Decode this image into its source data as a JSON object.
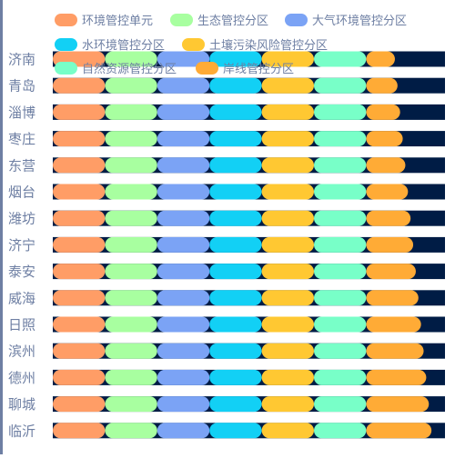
{
  "chart_data": {
    "type": "bar",
    "orientation": "horizontal",
    "stacked": true,
    "categories": [
      "济南",
      "青岛",
      "淄博",
      "枣庄",
      "东营",
      "烟台",
      "潍坊",
      "济宁",
      "泰安",
      "威海",
      "日照",
      "滨州",
      "德州",
      "聊城",
      "临沂"
    ],
    "series": [
      {
        "name": "环境管控单元",
        "color": "#ff9d66",
        "values": [
          20,
          20,
          20,
          20,
          20,
          20,
          20,
          20,
          20,
          20,
          20,
          20,
          20,
          20,
          20
        ]
      },
      {
        "name": "生态管控分区",
        "color": "#a8ffa0",
        "values": [
          20,
          20,
          20,
          20,
          20,
          20,
          20,
          20,
          20,
          20,
          20,
          20,
          20,
          20,
          20
        ]
      },
      {
        "name": "大气环境管控分区",
        "color": "#7ba3f5",
        "values": [
          20,
          20,
          20,
          20,
          20,
          20,
          20,
          20,
          20,
          20,
          20,
          20,
          20,
          20,
          20
        ]
      },
      {
        "name": "水环境管控分区",
        "color": "#12d0f5",
        "values": [
          20,
          20,
          20,
          20,
          20,
          20,
          20,
          20,
          20,
          20,
          20,
          20,
          20,
          20,
          20
        ]
      },
      {
        "name": "土壤污染风险管控分区",
        "color": "#ffc832",
        "values": [
          20,
          20,
          20,
          20,
          20,
          20,
          20,
          20,
          20,
          20,
          20,
          20,
          20,
          20,
          20
        ]
      },
      {
        "name": "自然资源管控分区",
        "color": "#78ffc8",
        "values": [
          20,
          20,
          20,
          20,
          20,
          20,
          20,
          20,
          20,
          20,
          20,
          20,
          20,
          20,
          20
        ]
      },
      {
        "name": "岸线管控分区",
        "color": "#ffab36",
        "values": [
          11,
          12,
          13,
          14,
          15,
          16,
          17,
          18,
          19,
          20,
          21,
          22,
          23,
          24,
          25
        ]
      }
    ],
    "xlim": [
      0,
      150
    ],
    "background_bar_color": "#001c45",
    "axis_label_color": "#6e7fa3",
    "grid": false,
    "legend_position": "top"
  }
}
